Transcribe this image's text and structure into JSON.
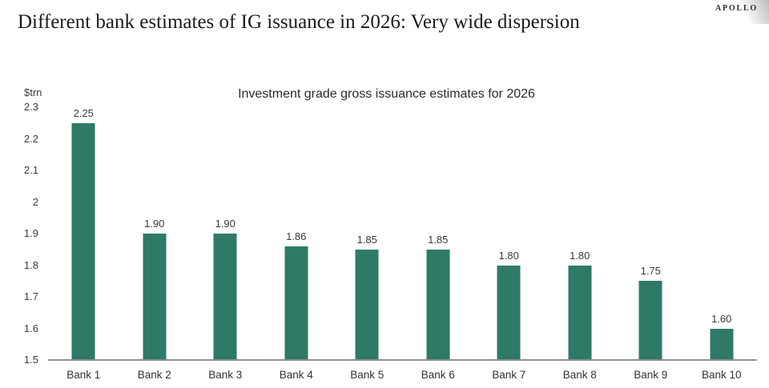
{
  "logo": {
    "brand": "APOLLO"
  },
  "header": {
    "title": "Different bank estimates of IG issuance in 2026: Very wide dispersion"
  },
  "chart_data": {
    "type": "bar",
    "title": "Investment grade gross issuance estimates for 2026",
    "unit_label": "$trn",
    "xlabel": "",
    "ylabel": "$trn",
    "categories": [
      "Bank 1",
      "Bank 2",
      "Bank 3",
      "Bank 4",
      "Bank 5",
      "Bank 6",
      "Bank 7",
      "Bank 8",
      "Bank 9",
      "Bank 10"
    ],
    "values": [
      2.25,
      1.9,
      1.9,
      1.86,
      1.85,
      1.85,
      1.8,
      1.8,
      1.75,
      1.6
    ],
    "value_labels": [
      "2.25",
      "1.90",
      "1.90",
      "1.86",
      "1.85",
      "1.85",
      "1.80",
      "1.80",
      "1.75",
      "1.60"
    ],
    "ylim": [
      1.5,
      2.3
    ],
    "ytick_labels": [
      "2.3",
      "2.2",
      "2.1",
      "2",
      "1.9",
      "1.8",
      "1.7",
      "1.6",
      "1.5"
    ],
    "grid": false,
    "legend_position": "none",
    "bar_color": "#2E7A66",
    "axis_color": "#8F8F8F",
    "label_color": "#3A3A3A"
  }
}
